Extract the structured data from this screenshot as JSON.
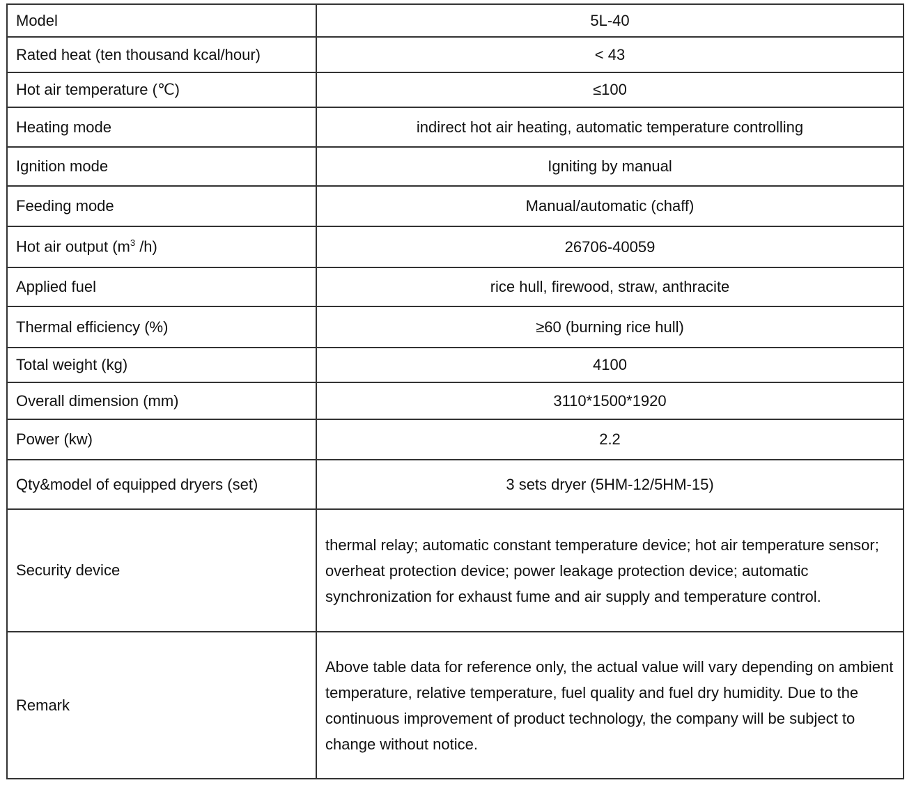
{
  "rows": [
    {
      "label": "Model",
      "value": "5L-40"
    },
    {
      "label": "Rated heat (ten thousand kcal/hour)",
      "value": "< 43"
    },
    {
      "label": "Hot air temperature (℃)",
      "value": "≤100"
    },
    {
      "label": "Heating mode",
      "value": "indirect hot air heating, automatic temperature controlling"
    },
    {
      "label": "Ignition mode",
      "value": "Igniting by manual"
    },
    {
      "label": "Feeding mode",
      "value": "Manual/automatic (chaff)"
    },
    {
      "label_pre": "Hot air output (m",
      "label_sup": "3",
      "label_post": " /h)",
      "value": "26706-40059"
    },
    {
      "label": "Applied fuel",
      "value": "rice hull, firewood, straw, anthracite"
    },
    {
      "label": "Thermal efficiency (%)",
      "value": "≥60 (burning rice hull)"
    },
    {
      "label": "Total weight (kg)",
      "value": "4100"
    },
    {
      "label": "Overall dimension (mm)",
      "value": "3110*1500*1920"
    },
    {
      "label": "Power (kw)",
      "value": "2.2"
    },
    {
      "label": "Qty&model of equipped dryers (set)",
      "value": "3 sets dryer (5HM-12/5HM-15)"
    },
    {
      "label": "Security device",
      "value": "thermal relay; automatic constant temperature device; hot air temperature sensor; overheat protection device; power leakage protection device; automatic synchronization for exhaust fume and air supply and temperature control."
    },
    {
      "label": "Remark",
      "value": "Above table data for reference only, the actual value will vary depending on ambient temperature, relative temperature, fuel quality and fuel dry humidity. Due to the continuous improvement of product technology, the company will be subject to change without notice."
    }
  ]
}
